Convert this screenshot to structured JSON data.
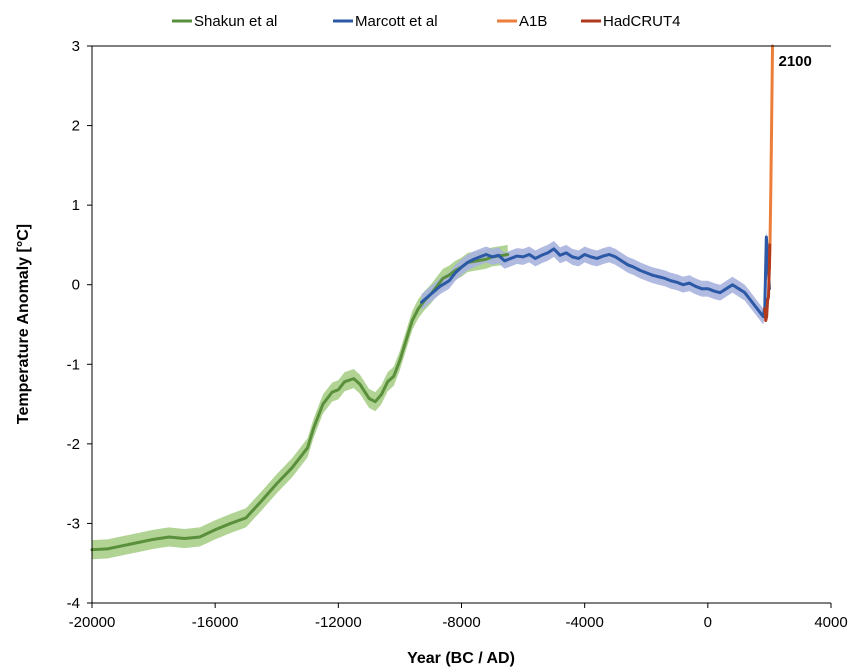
{
  "chart_data": {
    "type": "line",
    "xlabel": "Year (BC / AD)",
    "ylabel": "Temperature Anomaly [°C]",
    "xlim": [
      -20000,
      4000
    ],
    "ylim": [
      -4,
      3
    ],
    "xticks": [
      -20000,
      -16000,
      -12000,
      -8000,
      -4000,
      0,
      4000
    ],
    "xtick_labels": [
      "-20000",
      "-16000",
      "-12000",
      "-8000",
      "-4000",
      "0",
      "4000"
    ],
    "yticks": [
      -4,
      -3,
      -2,
      -1,
      0,
      1,
      2,
      3
    ],
    "ytick_labels": [
      "-4",
      "-3",
      "-2",
      "-1",
      "0",
      "1",
      "2",
      "3"
    ],
    "grid": false,
    "legend_position": "top",
    "annotation": "2100",
    "annotation_x": 2100,
    "annotation_y": 2.8,
    "series": [
      {
        "name": "Shakun et al",
        "color": "#5a8f3c",
        "band_color": "#a8cf8a",
        "band_halfwidth": 0.12,
        "x": [
          -20000,
          -19500,
          -19000,
          -18500,
          -18000,
          -17500,
          -17000,
          -16500,
          -16000,
          -15500,
          -15000,
          -14500,
          -14000,
          -13500,
          -13000,
          -12800,
          -12500,
          -12200,
          -12000,
          -11800,
          -11500,
          -11300,
          -11000,
          -10800,
          -10600,
          -10400,
          -10200,
          -10000,
          -9800,
          -9600,
          -9400,
          -9200,
          -9000,
          -8800,
          -8600,
          -8400,
          -8200,
          -8000,
          -7800,
          -7500,
          -7200,
          -7000,
          -6800,
          -6500
        ],
        "y": [
          -3.33,
          -3.32,
          -3.28,
          -3.24,
          -3.2,
          -3.17,
          -3.19,
          -3.17,
          -3.08,
          -3.0,
          -2.93,
          -2.72,
          -2.5,
          -2.3,
          -2.05,
          -1.8,
          -1.5,
          -1.35,
          -1.32,
          -1.22,
          -1.18,
          -1.25,
          -1.43,
          -1.47,
          -1.38,
          -1.22,
          -1.15,
          -0.95,
          -0.7,
          -0.45,
          -0.3,
          -0.2,
          -0.12,
          -0.02,
          0.08,
          0.12,
          0.18,
          0.22,
          0.28,
          0.3,
          0.32,
          0.35,
          0.36,
          0.38
        ]
      },
      {
        "name": "Marcott et al",
        "color": "#2b59a6",
        "band_color": "#a8b2de",
        "band_halfwidth": 0.1,
        "x": [
          -9300,
          -9000,
          -8700,
          -8400,
          -8200,
          -8000,
          -7800,
          -7600,
          -7400,
          -7200,
          -7000,
          -6800,
          -6600,
          -6400,
          -6200,
          -6000,
          -5800,
          -5600,
          -5400,
          -5200,
          -5000,
          -4800,
          -4600,
          -4400,
          -4200,
          -4000,
          -3800,
          -3600,
          -3400,
          -3200,
          -3000,
          -2800,
          -2600,
          -2400,
          -2200,
          -2000,
          -1800,
          -1600,
          -1400,
          -1200,
          -1000,
          -800,
          -600,
          -400,
          -200,
          0,
          200,
          400,
          600,
          800,
          1000,
          1200,
          1400,
          1600,
          1800,
          1850,
          1900,
          1950,
          2000
        ],
        "y": [
          -0.22,
          -0.12,
          -0.02,
          0.05,
          0.15,
          0.22,
          0.28,
          0.32,
          0.35,
          0.38,
          0.35,
          0.37,
          0.3,
          0.33,
          0.36,
          0.35,
          0.38,
          0.33,
          0.37,
          0.4,
          0.45,
          0.37,
          0.4,
          0.35,
          0.33,
          0.38,
          0.35,
          0.33,
          0.36,
          0.38,
          0.35,
          0.3,
          0.25,
          0.22,
          0.18,
          0.15,
          0.12,
          0.1,
          0.08,
          0.05,
          0.03,
          0.0,
          0.02,
          -0.02,
          -0.05,
          -0.05,
          -0.08,
          -0.1,
          -0.05,
          0.0,
          -0.05,
          -0.1,
          -0.2,
          -0.3,
          -0.4,
          -0.28,
          0.6,
          0.3,
          -0.05
        ]
      },
      {
        "name": "A1B",
        "color": "#ec7d3a",
        "x": [
          2000,
          2020,
          2040,
          2060,
          2080,
          2100
        ],
        "y": [
          0.2,
          0.55,
          1.05,
          1.65,
          2.3,
          3.0
        ]
      },
      {
        "name": "HadCRUT4",
        "color": "#b03a1e",
        "x": [
          1850,
          1880,
          1910,
          1940,
          1970,
          2000,
          2012
        ],
        "y": [
          -0.3,
          -0.45,
          -0.4,
          -0.2,
          -0.15,
          0.25,
          0.5
        ]
      }
    ]
  }
}
